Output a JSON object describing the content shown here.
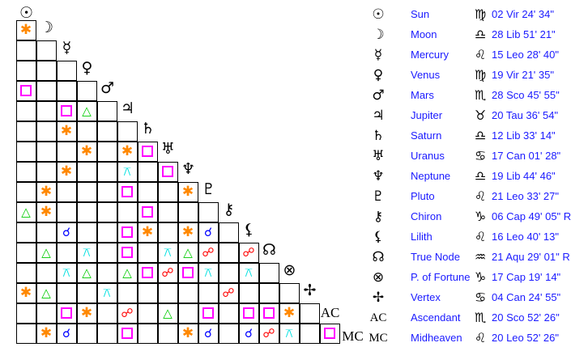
{
  "planets": [
    {
      "glyph": "☉",
      "name": "Sun",
      "sign_glyph": "♍",
      "position": "02 Vir 24' 34\""
    },
    {
      "glyph": "☽",
      "name": "Moon",
      "sign_glyph": "♎",
      "position": "28 Lib 51' 21\""
    },
    {
      "glyph": "☿",
      "name": "Mercury",
      "sign_glyph": "♌",
      "position": "15 Leo 28' 40\""
    },
    {
      "glyph": "♀",
      "name": "Venus",
      "sign_glyph": "♍",
      "position": "19 Vir 21' 35\""
    },
    {
      "glyph": "♂",
      "name": "Mars",
      "sign_glyph": "♏",
      "position": "28 Sco 45' 55\""
    },
    {
      "glyph": "♃",
      "name": "Jupiter",
      "sign_glyph": "♉",
      "position": "20 Tau 36' 54\""
    },
    {
      "glyph": "♄",
      "name": "Saturn",
      "sign_glyph": "♎",
      "position": "12 Lib 33' 14\""
    },
    {
      "glyph": "♅",
      "name": "Uranus",
      "sign_glyph": "♋",
      "position": "17 Can 01' 28\""
    },
    {
      "glyph": "♆",
      "name": "Neptune",
      "sign_glyph": "♎",
      "position": "19 Lib 44' 46\""
    },
    {
      "glyph": "♇",
      "name": "Pluto",
      "sign_glyph": "♌",
      "position": "21 Leo 33' 27\""
    },
    {
      "glyph": "⚷",
      "name": "Chiron",
      "sign_glyph": "♑",
      "position": "06 Cap 49' 05\" R"
    },
    {
      "glyph": "⚸",
      "name": "Lilith",
      "sign_glyph": "♌",
      "position": "16 Leo 40' 13\""
    },
    {
      "glyph": "☊",
      "name": "True Node",
      "sign_glyph": "♒",
      "position": "21 Aqu 29' 01\" R"
    },
    {
      "glyph": "⊗",
      "name": "P. of Fortune",
      "sign_glyph": "♑",
      "position": "17 Cap 19' 14\""
    },
    {
      "glyph": "✢",
      "name": "Vertex",
      "sign_glyph": "♋",
      "position": "04 Can 24' 55\""
    },
    {
      "glyph": "AC",
      "name": "Ascendant",
      "sign_glyph": "♏",
      "position": "20 Sco 52' 26\""
    },
    {
      "glyph": "MC",
      "name": "Midheaven",
      "sign_glyph": "♌",
      "position": "20 Leo 52' 26\""
    }
  ],
  "aspect_legend": {
    "con": {
      "symbol": "☌",
      "name": "conjunction",
      "color": "#0000ff"
    },
    "opp": {
      "symbol": "☍",
      "name": "opposition",
      "color": "#ff0000"
    },
    "tri": {
      "symbol": "△",
      "name": "trine",
      "color": "#00cc00"
    },
    "squ": {
      "symbol": "□",
      "name": "square",
      "color": "#ff00ff"
    },
    "sex": {
      "symbol": "✱",
      "name": "sextile",
      "color": "#ff8800"
    },
    "qui": {
      "symbol": "⚻",
      "name": "quincunx",
      "color": "#00e0e0"
    }
  },
  "aspect_grid": [
    [
      "sex"
    ],
    [
      "",
      ""
    ],
    [
      "",
      "",
      ""
    ],
    [
      "squ",
      "",
      "",
      ""
    ],
    [
      "",
      "",
      "squ",
      "tri",
      ""
    ],
    [
      "",
      "",
      "sex",
      "",
      "",
      ""
    ],
    [
      "",
      "",
      "",
      "sex",
      "",
      "sex",
      "squ"
    ],
    [
      "",
      "",
      "sex",
      "",
      "",
      "qui",
      "",
      "squ"
    ],
    [
      "",
      "sex",
      "",
      "",
      "",
      "squ",
      "",
      "",
      "sex"
    ],
    [
      "tri",
      "sex",
      "",
      "",
      "",
      "",
      "squ",
      "",
      "",
      ""
    ],
    [
      "",
      "",
      "con",
      "",
      "",
      "squ",
      "sex",
      "",
      "sex",
      "con",
      ""
    ],
    [
      "",
      "tri",
      "",
      "qui",
      "",
      "squ",
      "",
      "qui",
      "tri",
      "opp",
      "",
      "opp"
    ],
    [
      "",
      "",
      "qui",
      "tri",
      "",
      "tri",
      "squ",
      "opp",
      "squ",
      "qui",
      "",
      "qui",
      ""
    ],
    [
      "sex",
      "tri",
      "",
      "",
      "qui",
      "",
      "",
      "",
      "",
      "",
      "opp",
      "",
      "",
      ""
    ],
    [
      "",
      "",
      "squ",
      "sex",
      "",
      "opp",
      "",
      "tri",
      "",
      "squ",
      "",
      "squ",
      "squ",
      "sex",
      ""
    ],
    [
      "",
      "sex",
      "con",
      "",
      "",
      "squ",
      "",
      "",
      "sex",
      "con",
      "",
      "con",
      "opp",
      "qui",
      "",
      "squ"
    ]
  ]
}
